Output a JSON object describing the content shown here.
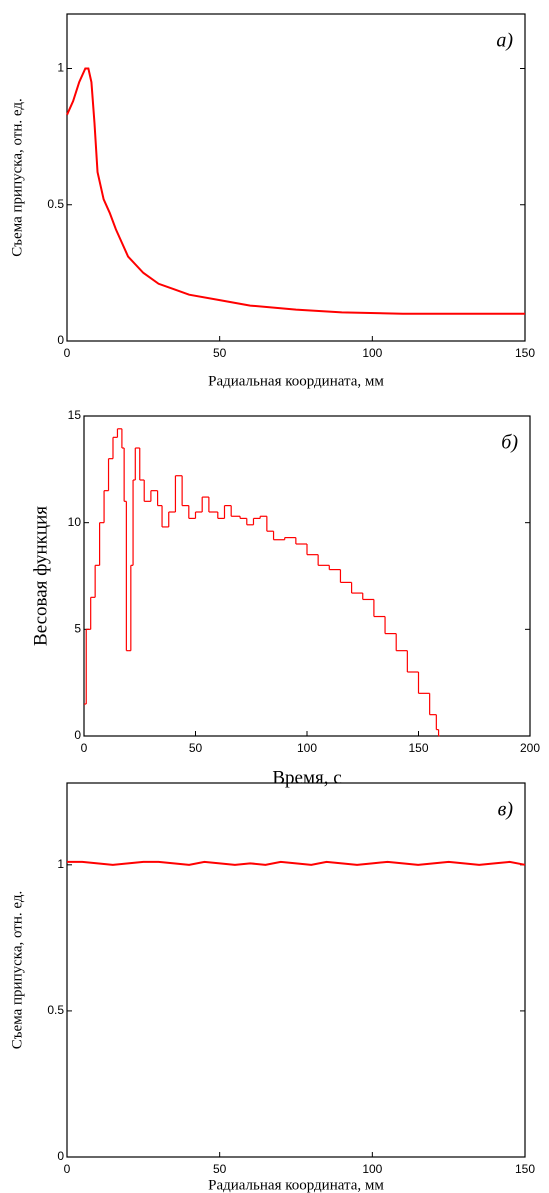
{
  "chart_data": [
    {
      "type": "line",
      "corner_label": "а)",
      "x_label": "Радиальная координата, мм",
      "y_label": "Съема припуска, отн. ед.",
      "x": [
        0,
        2,
        4,
        6,
        7,
        8,
        9,
        10,
        12,
        14,
        16,
        18,
        20,
        25,
        30,
        35,
        40,
        50,
        60,
        75,
        90,
        110,
        150
      ],
      "values": [
        0.83,
        0.88,
        0.95,
        1.0,
        1.0,
        0.95,
        0.8,
        0.62,
        0.52,
        0.47,
        0.41,
        0.36,
        0.31,
        0.25,
        0.21,
        0.19,
        0.17,
        0.15,
        0.13,
        0.115,
        0.105,
        0.1,
        0.1
      ],
      "color": "#ff0000",
      "xlim": [
        0,
        150
      ],
      "ylim": [
        0,
        1.2
      ],
      "xticks": [
        0,
        50,
        100,
        150
      ],
      "yticks": [
        0,
        0.5,
        1
      ]
    },
    {
      "type": "step",
      "corner_label": "б)",
      "x_label": "Время, с",
      "y_label": "Весовая функция",
      "x": [
        0,
        1,
        3,
        5,
        7,
        9,
        11,
        13,
        15,
        17,
        18,
        19,
        20,
        21,
        22,
        23,
        25,
        27,
        30,
        33,
        35,
        38,
        41,
        44,
        47,
        50,
        53,
        56,
        60,
        63,
        66,
        70,
        73,
        76,
        79,
        82,
        85,
        90,
        95,
        100,
        105,
        110,
        115,
        120,
        125,
        130,
        135,
        140,
        145,
        150,
        155,
        158,
        159
      ],
      "values": [
        1.5,
        5,
        6.5,
        8,
        10,
        11.5,
        13,
        14,
        14.4,
        13.5,
        11,
        4,
        4,
        8,
        12,
        13.5,
        12,
        11,
        11.5,
        10.8,
        9.8,
        10.5,
        12.2,
        10.8,
        10.2,
        10.5,
        11.2,
        10.5,
        10.2,
        10.8,
        10.3,
        10.2,
        9.9,
        10.2,
        10.3,
        9.6,
        9.2,
        9.3,
        9.0,
        8.5,
        8.0,
        7.8,
        7.2,
        6.7,
        6.4,
        5.6,
        4.8,
        4.0,
        3.0,
        2.0,
        1.0,
        0.3,
        0
      ],
      "color": "#ff0000",
      "xlim": [
        0,
        200
      ],
      "ylim": [
        0,
        15
      ],
      "xticks": [
        0,
        50,
        100,
        150,
        200
      ],
      "yticks": [
        0,
        5,
        10,
        15
      ]
    },
    {
      "type": "line",
      "corner_label": "в)",
      "x_label": "Радиальная координата, мм",
      "y_label": "Съема припуска, отн. ед.",
      "x": [
        0,
        5,
        10,
        15,
        20,
        25,
        30,
        35,
        40,
        45,
        50,
        55,
        60,
        65,
        70,
        75,
        80,
        85,
        90,
        95,
        100,
        105,
        110,
        115,
        120,
        125,
        130,
        135,
        140,
        145,
        150
      ],
      "values": [
        1.01,
        1.01,
        1.005,
        1.0,
        1.005,
        1.01,
        1.01,
        1.005,
        1.0,
        1.01,
        1.005,
        1.0,
        1.005,
        1.0,
        1.01,
        1.005,
        1.0,
        1.01,
        1.005,
        1.0,
        1.005,
        1.01,
        1.005,
        1.0,
        1.005,
        1.01,
        1.005,
        1.0,
        1.005,
        1.01,
        1.0
      ],
      "color": "#ff0000",
      "xlim": [
        0,
        150
      ],
      "ylim": [
        0,
        1.28
      ],
      "xticks": [
        0,
        50,
        100,
        150
      ],
      "yticks": [
        0,
        0.5,
        1
      ]
    }
  ]
}
